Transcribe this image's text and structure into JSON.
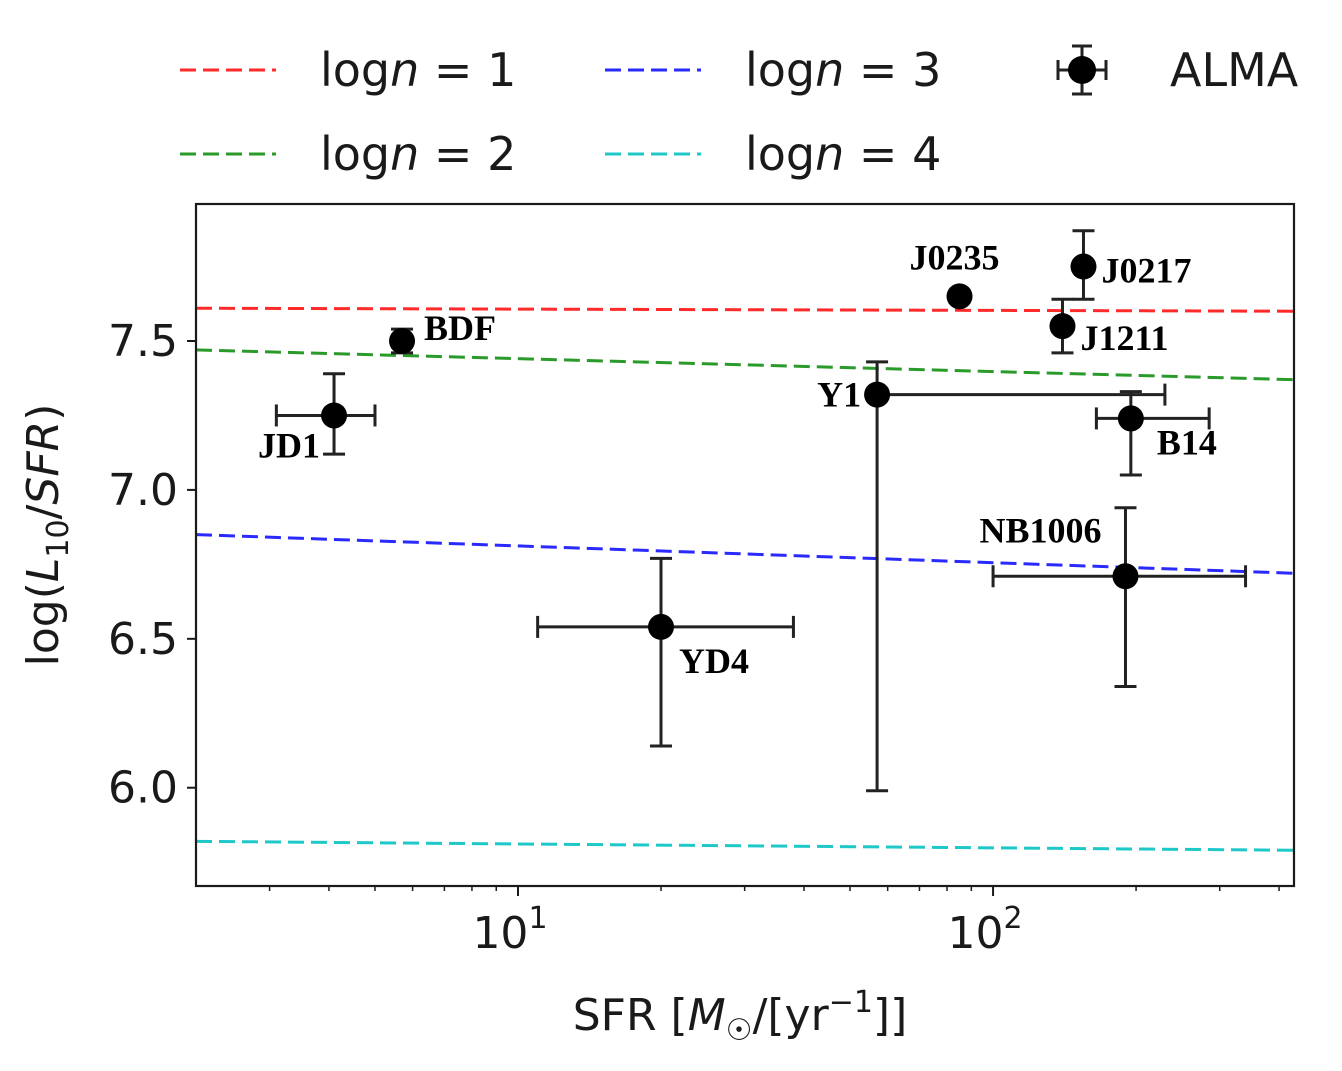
{
  "chart_data": {
    "type": "scatter",
    "x_scale": "log",
    "xlim": [
      2.1,
      430
    ],
    "ylim": [
      5.67,
      7.96
    ],
    "xlabel": {
      "pre": "SFR [",
      "M": "M",
      "sun": "☉",
      "mid": "/[yr",
      "sup": "−1",
      "post": "]]"
    },
    "ylabel": {
      "pre": "log(",
      "L": "L",
      "sub": "10",
      "mid": "/",
      "SFR": "SFR",
      "post": ")"
    },
    "x_ticks": [
      {
        "value": 10,
        "base": "10",
        "exp": "1"
      },
      {
        "value": 100,
        "base": "10",
        "exp": "2"
      }
    ],
    "y_ticks": [
      {
        "value": 6.0,
        "label": "6.0"
      },
      {
        "value": 6.5,
        "label": "6.5"
      },
      {
        "value": 7.0,
        "label": "7.0"
      },
      {
        "value": 7.5,
        "label": "7.5"
      }
    ],
    "lines": [
      {
        "name": "log n = 1",
        "prefix": "log",
        "var": "n",
        "suffix": " = 1",
        "color": "#ff2a2a",
        "x": [
          2.1,
          430
        ],
        "y": [
          7.61,
          7.6
        ]
      },
      {
        "name": "log n = 2",
        "prefix": "log",
        "var": "n",
        "suffix": " = 2",
        "color": "#2a9a2a",
        "x": [
          2.1,
          430
        ],
        "y": [
          7.47,
          7.37
        ]
      },
      {
        "name": "log n = 3",
        "prefix": "log",
        "var": "n",
        "suffix": " = 3",
        "color": "#2a2aff",
        "x": [
          2.1,
          430
        ],
        "y": [
          6.85,
          6.72
        ]
      },
      {
        "name": "log n = 4",
        "prefix": "log",
        "var": "n",
        "suffix": " = 4",
        "color": "#1fc8c8",
        "x": [
          2.1,
          430
        ],
        "y": [
          5.82,
          5.79
        ]
      }
    ],
    "points_series": {
      "name": "ALMA",
      "color": "#000000"
    },
    "points": [
      {
        "label": "JD1",
        "x": 4.1,
        "y": 7.25,
        "xerr": [
          3.1,
          5.0
        ],
        "yerr": [
          7.12,
          7.39
        ],
        "label_pos": "below-left"
      },
      {
        "label": "BDF",
        "x": 5.7,
        "y": 7.5,
        "xerr": null,
        "yerr": [
          7.46,
          7.54
        ],
        "label_pos": "right"
      },
      {
        "label": "YD4",
        "x": 20,
        "y": 6.54,
        "xerr": [
          11,
          38
        ],
        "yerr": [
          6.14,
          6.77
        ],
        "label_pos": "below-right"
      },
      {
        "label": "Y1",
        "x": 57,
        "y": 7.32,
        "xerr": [
          57,
          230
        ],
        "yerr": [
          5.99,
          7.43
        ],
        "label_pos": "left"
      },
      {
        "label": "J0235",
        "x": 85,
        "y": 7.65,
        "xerr": null,
        "yerr": [
          7.63,
          7.67
        ],
        "label_pos": "above-left"
      },
      {
        "label": "J1211",
        "x": 140,
        "y": 7.55,
        "xerr": null,
        "yerr": [
          7.46,
          7.64
        ],
        "label_pos": "below-right"
      },
      {
        "label": "J0217",
        "x": 155,
        "y": 7.75,
        "xerr": null,
        "yerr": [
          7.64,
          7.87
        ],
        "label_pos": "right"
      },
      {
        "label": "B14",
        "x": 195,
        "y": 7.24,
        "xerr": [
          165,
          285
        ],
        "yerr": [
          7.05,
          7.33
        ],
        "label_pos": "below-right"
      },
      {
        "label": "NB1006",
        "x": 190,
        "y": 6.71,
        "xerr": [
          100,
          340
        ],
        "yerr": [
          6.34,
          6.94
        ],
        "label_pos": "above-left"
      }
    ],
    "legend": {
      "placement": "top",
      "columns": 3
    },
    "grid": false
  }
}
